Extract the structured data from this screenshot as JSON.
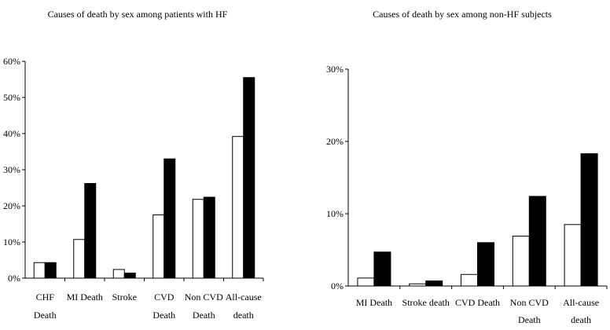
{
  "chart_data": [
    {
      "type": "bar",
      "title": "Causes of death by sex among patients with HF",
      "xlabel": "",
      "ylabel": "",
      "ylim": [
        0,
        0.6
      ],
      "yticks": [
        "0%",
        "10%",
        "20%",
        "30%",
        "40%",
        "50%",
        "60%"
      ],
      "categories": [
        [
          "CHF",
          "Death"
        ],
        [
          "MI Death"
        ],
        [
          "Stroke"
        ],
        [
          "CVD",
          "Death"
        ],
        [
          "Non CVD",
          "Death"
        ],
        [
          "All-cause",
          "death"
        ]
      ],
      "series": [
        {
          "color": "#ffffff",
          "values": [
            0.043,
            0.107,
            0.024,
            0.175,
            0.218,
            0.392
          ]
        },
        {
          "color": "#000000",
          "values": [
            0.043,
            0.262,
            0.014,
            0.33,
            0.224,
            0.555
          ]
        }
      ],
      "grid": false
    },
    {
      "type": "bar",
      "title": "Causes of death by sex among non-HF subjects",
      "xlabel": "",
      "ylabel": "",
      "ylim": [
        0,
        0.3
      ],
      "yticks": [
        "0%",
        "10%",
        "20%",
        "30%"
      ],
      "categories": [
        [
          "MI Death"
        ],
        [
          "Stroke death"
        ],
        [
          "CVD Death"
        ],
        [
          "Non CVD",
          "Death"
        ],
        [
          "All-cause",
          "death"
        ]
      ],
      "series": [
        {
          "color": "#ffffff",
          "values": [
            0.011,
            0.003,
            0.016,
            0.069,
            0.085
          ]
        },
        {
          "color": "#000000",
          "values": [
            0.047,
            0.007,
            0.06,
            0.124,
            0.183
          ]
        }
      ],
      "grid": false
    }
  ]
}
